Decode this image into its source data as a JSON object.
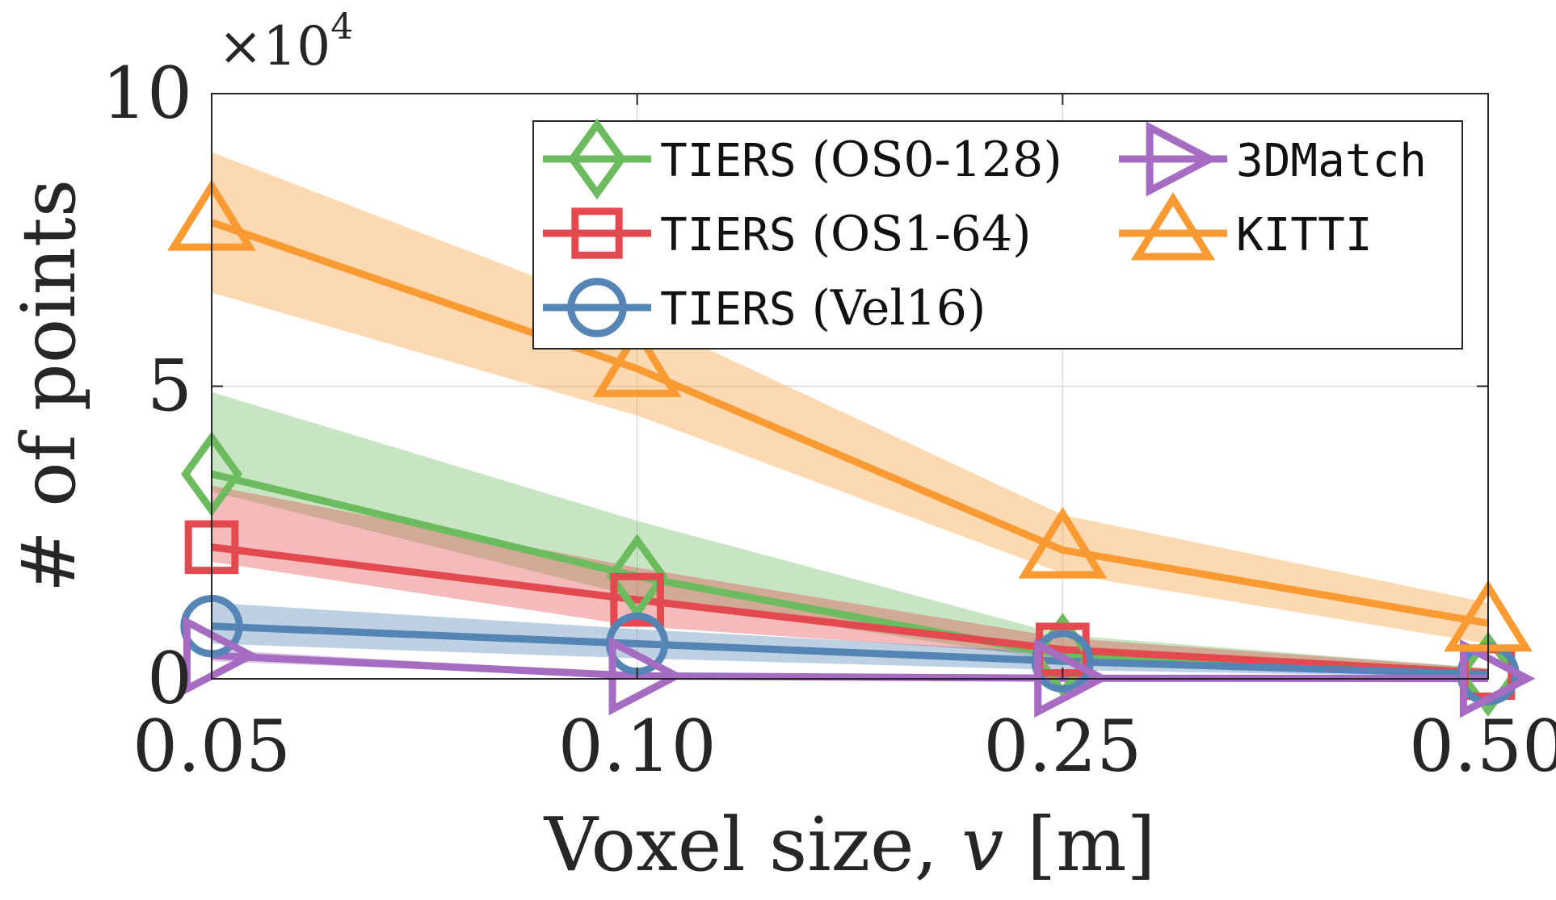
{
  "chart_data": {
    "type": "line",
    "title": "",
    "xlabel": "Voxel size, ",
    "xlabel_var": "v",
    "xlabel_unit": " [m]",
    "ylabel": "# of points",
    "y_multiplier": "×10",
    "y_multiplier_exp": "4",
    "categories": [
      "0.05",
      "0.10",
      "0.25",
      "0.50"
    ],
    "yticks": [
      {
        "value": 0,
        "label": "0"
      },
      {
        "value": 50000,
        "label": "5"
      },
      {
        "value": 100000,
        "label": "10"
      }
    ],
    "ylim": [
      0,
      100000
    ],
    "grid": true,
    "legend_position": "top-right",
    "series": [
      {
        "name": "TIERS",
        "name_suffix": " (OS0-128)",
        "marker": "diamond",
        "color": "#6cbb5f",
        "values": [
          35000,
          17500,
          4000,
          800
        ],
        "lower": [
          32000,
          14000,
          3000,
          500
        ],
        "upper": [
          49000,
          27000,
          7500,
          1800
        ]
      },
      {
        "name": "TIERS",
        "name_suffix": " (OS1-64)",
        "marker": "square",
        "color": "#e34a4f",
        "values": [
          22500,
          13500,
          5000,
          1000
        ],
        "lower": [
          20000,
          9000,
          4000,
          700
        ],
        "upper": [
          33000,
          19000,
          7000,
          1800
        ]
      },
      {
        "name": "TIERS",
        "name_suffix": " (Vel16)",
        "marker": "circle",
        "color": "#5585b5",
        "values": [
          9000,
          6000,
          3000,
          800
        ],
        "lower": [
          6000,
          3500,
          1500,
          300
        ],
        "upper": [
          13000,
          8500,
          4500,
          1500
        ]
      },
      {
        "name": "3DMatch",
        "name_suffix": "",
        "marker": "triangle-right",
        "color": "#a56cc1",
        "values": [
          4000,
          500,
          100,
          50
        ],
        "lower": [
          3000,
          300,
          50,
          20
        ],
        "upper": [
          5000,
          900,
          300,
          100
        ]
      },
      {
        "name": "KITTI",
        "name_suffix": "",
        "marker": "triangle-up",
        "color": "#f99a32",
        "values": [
          78000,
          53000,
          22000,
          9500
        ],
        "lower": [
          66000,
          45000,
          18000,
          6000
        ],
        "upper": [
          90000,
          62000,
          28000,
          13000
        ]
      }
    ]
  }
}
